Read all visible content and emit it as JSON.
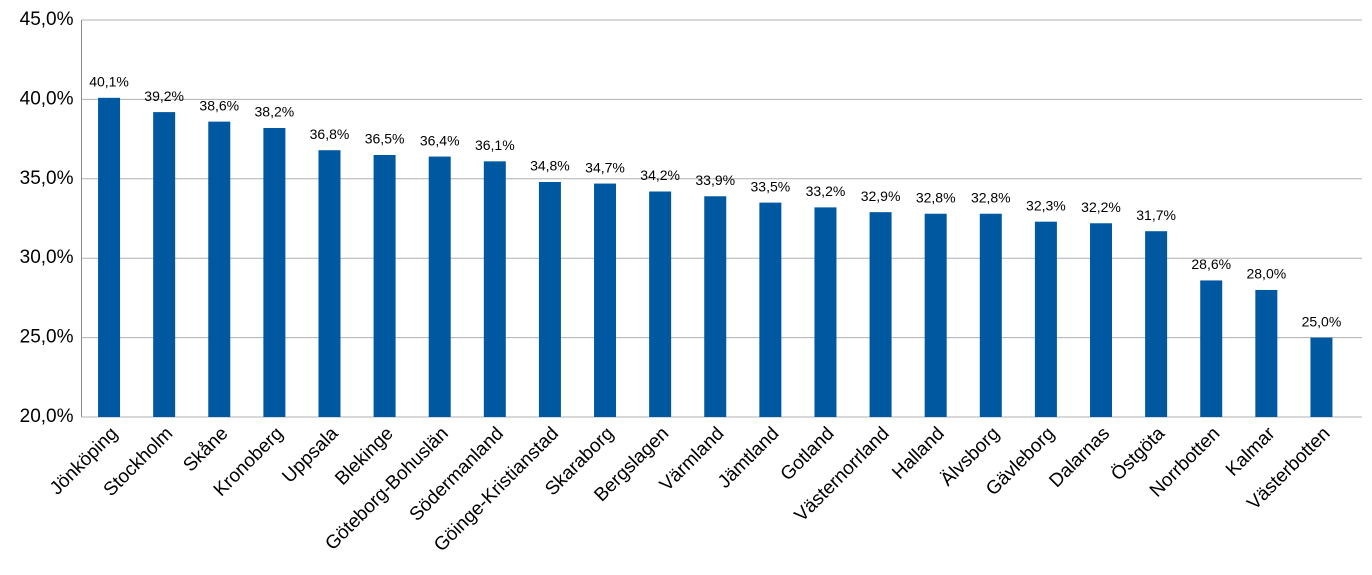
{
  "chart_data": {
    "type": "bar",
    "categories": [
      "Jönköping",
      "Stockholm",
      "Skåne",
      "Kronoberg",
      "Uppsala",
      "Blekinge",
      "Göteborg-Bohuslän",
      "Södermanland",
      "Göinge-Kristianstad",
      "Skaraborg",
      "Bergslagen",
      "Värmland",
      "Jämtland",
      "Gotland",
      "Västernorrland",
      "Halland",
      "Älvsborg",
      "Gävleborg",
      "Dalarnas",
      "Östgöta",
      "Norrbotten",
      "Kalmar",
      "Västerbotten"
    ],
    "values": [
      40.1,
      39.2,
      38.6,
      38.2,
      36.8,
      36.5,
      36.4,
      36.1,
      34.8,
      34.7,
      34.2,
      33.9,
      33.5,
      33.2,
      32.9,
      32.8,
      32.8,
      32.3,
      32.2,
      31.7,
      28.6,
      28.0,
      25.0
    ],
    "value_labels": [
      "40,1%",
      "39,2%",
      "38,6%",
      "38,2%",
      "36,8%",
      "36,5%",
      "36,4%",
      "36,1%",
      "34,8%",
      "34,7%",
      "34,2%",
      "33,9%",
      "33,5%",
      "33,2%",
      "32,9%",
      "32,8%",
      "32,8%",
      "32,3%",
      "32,2%",
      "31,7%",
      "28,6%",
      "28,0%",
      "25,0%"
    ],
    "color": "#0059a0",
    "ylim": [
      20,
      45
    ],
    "yticks": [
      {
        "value": 20,
        "label": "20,0%"
      },
      {
        "value": 25,
        "label": "25,0%"
      },
      {
        "value": 30,
        "label": "30,0%"
      },
      {
        "value": 35,
        "label": "35,0%"
      },
      {
        "value": 40,
        "label": "40,0%"
      },
      {
        "value": 45,
        "label": "45,0%"
      }
    ],
    "grid": true
  }
}
